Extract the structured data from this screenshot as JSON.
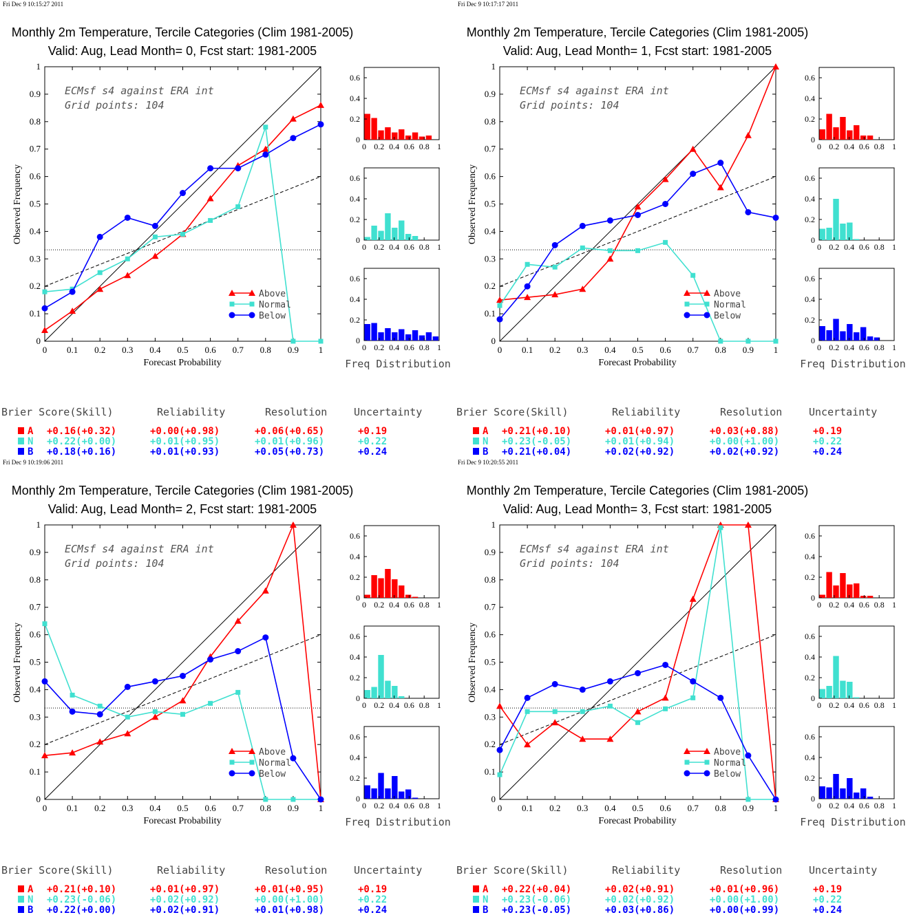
{
  "colors": {
    "above": "#ff0000",
    "normal": "#40e0d0",
    "below": "#0000ff"
  },
  "common": {
    "ylabel": "Observed Frequency",
    "xlabel": "Forecast Probability",
    "note1": "ECMsf s4 against ERA int",
    "note2": "Grid points:  104",
    "freq_label": "Freq Distribution",
    "legend": {
      "above": "Above",
      "normal": "Normal",
      "below": "Below"
    },
    "main_xticks": [
      "0",
      "0.1",
      "0.2",
      "0.3",
      "0.4",
      "0.5",
      "0.6",
      "0.7",
      "0.8",
      "0.9",
      "1"
    ],
    "main_yticks": [
      "0",
      "0.1",
      "0.2",
      "0.3",
      "0.4",
      "0.5",
      "0.6",
      "0.7",
      "0.8",
      "0.9",
      "1"
    ],
    "hist_xticks": [
      "0",
      "0.2",
      "0.4",
      "0.6",
      "0.8",
      "1"
    ],
    "hist_yticks": [
      "0",
      "0.2",
      "0.4",
      "0.6"
    ],
    "table_headers": {
      "brier": "Brier Score(Skill)",
      "reliability": "Reliability",
      "resolution": "Resolution",
      "uncertainty": "Uncertainty"
    },
    "row_labels": {
      "above": "A",
      "normal": "N",
      "below": "B"
    }
  },
  "panels": [
    {
      "timestamp": "Fri Dec  9 10:15:27 2011",
      "title1": "Monthly 2m Temperature, Tercile Categories (Clim 1981-2005)",
      "title2": "Valid: Aug, Lead Month= 0, Fcst start: 1981-2005",
      "table": {
        "above": {
          "brier": "+0.16(+0.32)",
          "reliability": "+0.00(+0.98)",
          "resolution": "+0.06(+0.65)",
          "uncertainty": "+0.19"
        },
        "normal": {
          "brier": "+0.22(+0.00)",
          "reliability": "+0.01(+0.95)",
          "resolution": "+0.01(+0.96)",
          "uncertainty": "+0.22"
        },
        "below": {
          "brier": "+0.18(+0.16)",
          "reliability": "+0.01(+0.93)",
          "resolution": "+0.05(+0.73)",
          "uncertainty": "+0.24"
        }
      }
    },
    {
      "timestamp": "Fri Dec  9 10:17:17 2011",
      "title1": "Monthly 2m Temperature, Tercile Categories (Clim 1981-2005)",
      "title2": "Valid: Aug, Lead Month= 1, Fcst start: 1981-2005",
      "table": {
        "above": {
          "brier": "+0.21(+0.10)",
          "reliability": "+0.01(+0.97)",
          "resolution": "+0.03(+0.88)",
          "uncertainty": "+0.19"
        },
        "normal": {
          "brier": "+0.23(-0.05)",
          "reliability": "+0.01(+0.94)",
          "resolution": "+0.00(+1.00)",
          "uncertainty": "+0.22"
        },
        "below": {
          "brier": "+0.21(+0.04)",
          "reliability": "+0.02(+0.92)",
          "resolution": "+0.02(+0.92)",
          "uncertainty": "+0.24"
        }
      }
    },
    {
      "timestamp": "Fri Dec  9 10:19:06 2011",
      "title1": "Monthly 2m Temperature, Tercile Categories (Clim 1981-2005)",
      "title2": "Valid: Aug, Lead Month= 2, Fcst start: 1981-2005",
      "table": {
        "above": {
          "brier": "+0.21(+0.10)",
          "reliability": "+0.01(+0.97)",
          "resolution": "+0.01(+0.95)",
          "uncertainty": "+0.19"
        },
        "normal": {
          "brier": "+0.23(-0.06)",
          "reliability": "+0.02(+0.92)",
          "resolution": "+0.00(+1.00)",
          "uncertainty": "+0.22"
        },
        "below": {
          "brier": "+0.22(+0.00)",
          "reliability": "+0.02(+0.91)",
          "resolution": "+0.01(+0.98)",
          "uncertainty": "+0.24"
        }
      }
    },
    {
      "timestamp": "Fri Dec  9 10:20:55 2011",
      "title1": "Monthly 2m Temperature, Tercile Categories (Clim 1981-2005)",
      "title2": "Valid: Aug, Lead Month= 3, Fcst start: 1981-2005",
      "table": {
        "above": {
          "brier": "+0.22(+0.04)",
          "reliability": "+0.02(+0.91)",
          "resolution": "+0.01(+0.96)",
          "uncertainty": "+0.19"
        },
        "normal": {
          "brier": "+0.23(-0.06)",
          "reliability": "+0.02(+0.92)",
          "resolution": "+0.00(+1.00)",
          "uncertainty": "+0.22"
        },
        "below": {
          "brier": "+0.23(-0.05)",
          "reliability": "+0.03(+0.86)",
          "resolution": "+0.00(+0.99)",
          "uncertainty": "+0.24"
        }
      }
    }
  ],
  "chart_data": [
    {
      "type": "line",
      "x": [
        0,
        0.1,
        0.2,
        0.3,
        0.4,
        0.5,
        0.6,
        0.7,
        0.8,
        0.9,
        1
      ],
      "xlim": [
        0,
        1
      ],
      "ylim": [
        0,
        1
      ],
      "series": [
        {
          "name": "Above",
          "values": [
            0.04,
            0.11,
            0.19,
            0.24,
            0.31,
            0.39,
            0.52,
            0.64,
            0.7,
            0.81,
            0.86
          ]
        },
        {
          "name": "Normal",
          "values": [
            0.18,
            0.19,
            0.25,
            0.3,
            0.38,
            0.39,
            0.44,
            0.49,
            0.78,
            0,
            0
          ]
        },
        {
          "name": "Below",
          "values": [
            0.12,
            0.18,
            0.38,
            0.45,
            0.42,
            0.54,
            0.63,
            0.63,
            0.68,
            0.74,
            0.79
          ]
        }
      ],
      "reference": {
        "climatology": 0.333,
        "no_skill": [
          0.2,
          0.6
        ]
      },
      "histograms": {
        "ylim": [
          0,
          0.7
        ],
        "above": [
          0.25,
          0.21,
          0.09,
          0.12,
          0.07,
          0.1,
          0.04,
          0.07,
          0.03,
          0.04
        ],
        "normal": [
          0.03,
          0.14,
          0.09,
          0.26,
          0.12,
          0.19,
          0.06,
          0.04
        ],
        "below": [
          0.16,
          0.17,
          0.08,
          0.12,
          0.08,
          0.11,
          0.06,
          0.1,
          0.05,
          0.08,
          0.04
        ]
      }
    },
    {
      "type": "line",
      "x": [
        0,
        0.1,
        0.2,
        0.3,
        0.4,
        0.5,
        0.6,
        0.7,
        0.8,
        0.9,
        1
      ],
      "xlim": [
        0,
        1
      ],
      "ylim": [
        0,
        1
      ],
      "series": [
        {
          "name": "Above",
          "values": [
            0.15,
            0.16,
            0.17,
            0.19,
            0.3,
            0.49,
            0.59,
            0.7,
            0.56,
            0.75,
            1.0
          ]
        },
        {
          "name": "Normal",
          "values": [
            0.13,
            0.28,
            0.27,
            0.34,
            0.33,
            0.33,
            0.36,
            0.24,
            0,
            0,
            0
          ]
        },
        {
          "name": "Below",
          "values": [
            0.08,
            0.2,
            0.35,
            0.42,
            0.44,
            0.46,
            0.5,
            0.61,
            0.65,
            0.47,
            0.45
          ]
        }
      ],
      "reference": {
        "climatology": 0.333,
        "no_skill": [
          0.2,
          0.6
        ]
      },
      "histograms": {
        "ylim": [
          0,
          0.7
        ],
        "above": [
          0.1,
          0.25,
          0.12,
          0.22,
          0.09,
          0.14,
          0.04,
          0.04
        ],
        "normal": [
          0.11,
          0.12,
          0.4,
          0.16,
          0.17,
          0.01
        ],
        "below": [
          0.14,
          0.1,
          0.21,
          0.09,
          0.16,
          0.08,
          0.13,
          0.04,
          0.03
        ]
      }
    },
    {
      "type": "line",
      "x": [
        0,
        0.1,
        0.2,
        0.3,
        0.4,
        0.5,
        0.6,
        0.7,
        0.8,
        0.9,
        1
      ],
      "xlim": [
        0,
        1
      ],
      "ylim": [
        0,
        1
      ],
      "series": [
        {
          "name": "Above",
          "values": [
            0.16,
            0.17,
            0.21,
            0.24,
            0.3,
            0.36,
            0.52,
            0.65,
            0.76,
            1.0,
            0
          ]
        },
        {
          "name": "Normal",
          "values": [
            0.64,
            0.38,
            0.34,
            0.3,
            0.32,
            0.31,
            0.35,
            0.39,
            0,
            0,
            0
          ]
        },
        {
          "name": "Below",
          "values": [
            0.43,
            0.32,
            0.31,
            0.41,
            0.43,
            0.45,
            0.51,
            0.54,
            0.59,
            0.15,
            0
          ]
        }
      ],
      "reference": {
        "climatology": 0.333,
        "no_skill": [
          0.2,
          0.6
        ]
      },
      "histograms": {
        "ylim": [
          0,
          0.7
        ],
        "above": [
          0.03,
          0.22,
          0.19,
          0.28,
          0.18,
          0.12,
          0.03,
          0.01
        ],
        "normal": [
          0.08,
          0.11,
          0.42,
          0.17,
          0.12,
          0.02
        ],
        "below": [
          0.13,
          0.1,
          0.25,
          0.1,
          0.22,
          0.07,
          0.09,
          0.01
        ]
      }
    },
    {
      "type": "line",
      "x": [
        0,
        0.1,
        0.2,
        0.3,
        0.4,
        0.5,
        0.6,
        0.7,
        0.8,
        0.9,
        1
      ],
      "xlim": [
        0,
        1
      ],
      "ylim": [
        0,
        1
      ],
      "series": [
        {
          "name": "Above",
          "values": [
            0.34,
            0.2,
            0.28,
            0.22,
            0.22,
            0.32,
            0.37,
            0.73,
            1.0,
            1.0,
            0
          ]
        },
        {
          "name": "Normal",
          "values": [
            0.09,
            0.32,
            0.32,
            0.32,
            0.34,
            0.28,
            0.33,
            0.37,
            0.99,
            0,
            0
          ]
        },
        {
          "name": "Below",
          "values": [
            0.18,
            0.37,
            0.42,
            0.4,
            0.43,
            0.46,
            0.49,
            0.43,
            0.37,
            0.16,
            0
          ]
        }
      ],
      "reference": {
        "climatology": 0.333,
        "no_skill": [
          0.2,
          0.6
        ]
      },
      "histograms": {
        "ylim": [
          0,
          0.7
        ],
        "above": [
          0.03,
          0.25,
          0.12,
          0.24,
          0.13,
          0.14,
          0.02,
          0.02
        ],
        "normal": [
          0.09,
          0.12,
          0.41,
          0.17,
          0.16,
          0.01
        ],
        "below": [
          0.12,
          0.11,
          0.24,
          0.1,
          0.2,
          0.06,
          0.1,
          0.02
        ]
      }
    }
  ]
}
